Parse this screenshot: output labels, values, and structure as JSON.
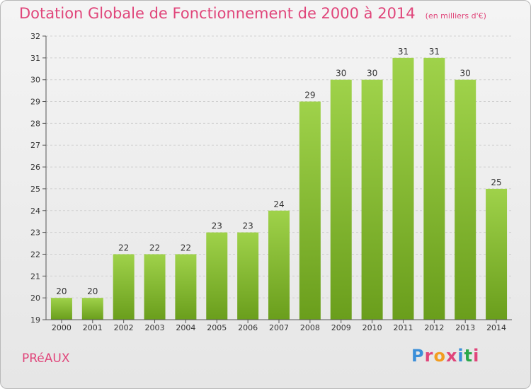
{
  "title": "Dotation Globale de Fonctionnement de 2000 à 2014",
  "unit": "(en milliers d'€)",
  "commune": "PRéAUX",
  "logo": {
    "text": "Proxiti",
    "colors": [
      "#3b8fd9",
      "#e0457a",
      "#f29c1f",
      "#e0457a",
      "#3b8fd9",
      "#2aa84a",
      "#e0457a"
    ]
  },
  "chart_data": {
    "type": "bar",
    "title": "Dotation Globale de Fonctionnement de 2000 à 2014",
    "categories": [
      "2000",
      "2001",
      "2002",
      "2003",
      "2004",
      "2005",
      "2006",
      "2007",
      "2008",
      "2009",
      "2010",
      "2011",
      "2012",
      "2013",
      "2014"
    ],
    "values": [
      20,
      20,
      22,
      22,
      22,
      23,
      23,
      24,
      29,
      30,
      30,
      31,
      31,
      30,
      25
    ],
    "ylim": [
      19,
      32
    ],
    "yticks": [
      19,
      20,
      21,
      22,
      23,
      24,
      25,
      26,
      27,
      28,
      29,
      30,
      31,
      32
    ],
    "grid": true,
    "bar_color_top": "#9fd24a",
    "bar_color_bottom": "#6a9e1c"
  }
}
